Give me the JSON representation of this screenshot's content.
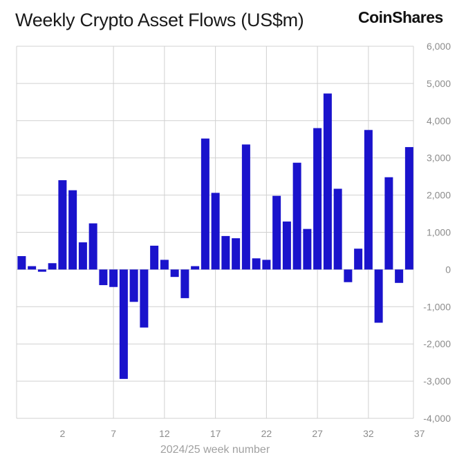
{
  "header": {
    "title": "Weekly Crypto Asset Flows (US$m)",
    "brand": "CoinShares"
  },
  "colors": {
    "bar": "#1a13cc",
    "grid": "#d0d0d0",
    "tick_text": "#8c8c8c"
  },
  "chart_data": {
    "type": "bar",
    "title": "Weekly Crypto Asset Flows (US$m)",
    "xlabel": "2024/25 week number",
    "ylabel": "",
    "ylim": [
      -4000,
      6000
    ],
    "y_ticks": [
      6000,
      5000,
      4000,
      3000,
      2000,
      1000,
      0,
      -1000,
      -2000,
      -3000,
      -4000
    ],
    "y_tick_labels": [
      "6,000",
      "5,000",
      "4,000",
      "3,000",
      "2,000",
      "1,000",
      "0",
      "-1,000",
      "-2,000",
      "-3,000",
      "-4,000"
    ],
    "y_axis_side": "right",
    "grid": true,
    "x_tick_labels": [
      "2",
      "7",
      "12",
      "17",
      "22",
      "27",
      "32",
      "37"
    ],
    "x_tick_weeks": [
      2,
      7,
      12,
      17,
      22,
      27,
      32,
      37
    ],
    "weeks": [
      -2,
      -1,
      0,
      1,
      2,
      3,
      4,
      5,
      6,
      7,
      8,
      9,
      10,
      11,
      12,
      13,
      14,
      15,
      16,
      17,
      18,
      19,
      20,
      21,
      22,
      23,
      24,
      25,
      26,
      27,
      28,
      29,
      30,
      31,
      32,
      33,
      34,
      35,
      36,
      37
    ],
    "values": [
      360,
      90,
      -60,
      170,
      2400,
      2130,
      730,
      1240,
      -420,
      -470,
      -2940,
      -870,
      -1560,
      640,
      260,
      -200,
      -770,
      90,
      3520,
      2060,
      900,
      840,
      3360,
      300,
      260,
      1980,
      1290,
      2870,
      1090,
      3800,
      4730,
      2170,
      -340,
      560,
      3750,
      -1430,
      2480,
      -360,
      3290,
      null
    ]
  }
}
